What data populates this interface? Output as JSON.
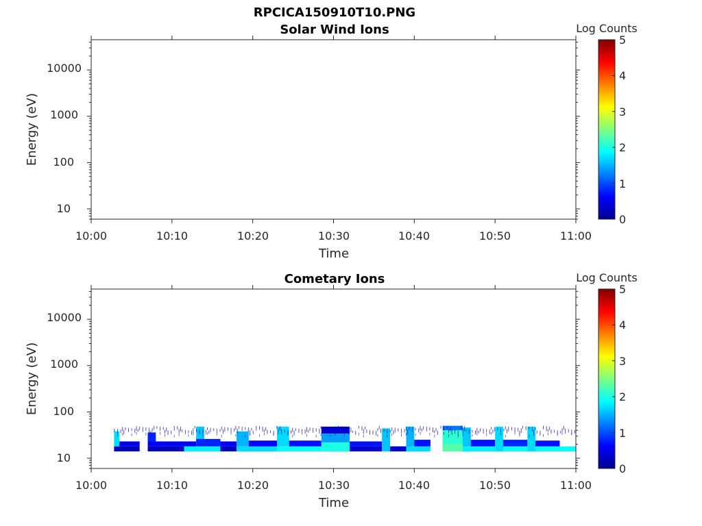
{
  "figure": {
    "title": "RPCICA150910T10.PNG"
  },
  "chart_data": [
    {
      "type": "heatmap",
      "title": "Solar Wind Ions",
      "xlabel": "Time",
      "ylabel": "Energy (eV)",
      "x_ticks": [
        "10:00",
        "10:10",
        "10:20",
        "10:30",
        "10:40",
        "10:50",
        "11:00"
      ],
      "x_range": [
        "10:00",
        "11:00"
      ],
      "y_scale": "log",
      "y_ticks": [
        "10",
        "100",
        "1000",
        "10000"
      ],
      "y_range": [
        6,
        45000
      ],
      "colorbar": {
        "label": "Log Counts",
        "ticks": [
          "0",
          "1",
          "2",
          "3",
          "4",
          "5"
        ],
        "range": [
          0,
          5
        ],
        "colormap": "jet"
      },
      "cells": []
    },
    {
      "type": "heatmap",
      "title": "Cometary Ions",
      "xlabel": "Time",
      "ylabel": "Energy (eV)",
      "x_ticks": [
        "10:00",
        "10:10",
        "10:20",
        "10:30",
        "10:40",
        "10:50",
        "11:00"
      ],
      "x_range": [
        "10:00",
        "11:00"
      ],
      "y_scale": "log",
      "y_ticks": [
        "10",
        "100",
        "1000",
        "10000"
      ],
      "y_range": [
        6,
        45000
      ],
      "colorbar": {
        "label": "Log Counts",
        "ticks": [
          "0",
          "1",
          "2",
          "3",
          "4",
          "5"
        ],
        "range": [
          0,
          5
        ],
        "colormap": "jet"
      },
      "cells": [
        {
          "t0": "10:02:50",
          "t1": "10:06:00",
          "e0": 14,
          "e1": 18,
          "v": 0.3
        },
        {
          "t0": "10:02:50",
          "t1": "10:03:30",
          "e0": 18,
          "e1": 38,
          "v": 1.7
        },
        {
          "t0": "10:03:30",
          "t1": "10:06:00",
          "e0": 18,
          "e1": 23,
          "v": 0.5
        },
        {
          "t0": "10:07:00",
          "t1": "10:13:00",
          "e0": 14,
          "e1": 18,
          "v": 0.3
        },
        {
          "t0": "10:07:00",
          "t1": "10:13:00",
          "e0": 18,
          "e1": 23,
          "v": 0.6
        },
        {
          "t0": "10:07:00",
          "t1": "10:08:00",
          "e0": 23,
          "e1": 36,
          "v": 0.8
        },
        {
          "t0": "10:11:30",
          "t1": "10:16:00",
          "e0": 14,
          "e1": 18,
          "v": 1.8
        },
        {
          "t0": "10:13:00",
          "t1": "10:14:00",
          "e0": 18,
          "e1": 48,
          "v": 1.6
        },
        {
          "t0": "10:13:00",
          "t1": "10:16:00",
          "e0": 18,
          "e1": 26,
          "v": 0.8
        },
        {
          "t0": "10:16:00",
          "t1": "10:18:00",
          "e0": 14,
          "e1": 18,
          "v": 0.3
        },
        {
          "t0": "10:16:00",
          "t1": "10:18:00",
          "e0": 18,
          "e1": 23,
          "v": 0.6
        },
        {
          "t0": "10:18:00",
          "t1": "10:23:00",
          "e0": 14,
          "e1": 18,
          "v": 1.7
        },
        {
          "t0": "10:18:00",
          "t1": "10:19:30",
          "e0": 18,
          "e1": 38,
          "v": 1.5
        },
        {
          "t0": "10:19:30",
          "t1": "10:23:00",
          "e0": 18,
          "e1": 24,
          "v": 0.6
        },
        {
          "t0": "10:23:00",
          "t1": "10:28:30",
          "e0": 14,
          "e1": 18,
          "v": 1.9
        },
        {
          "t0": "10:23:00",
          "t1": "10:24:30",
          "e0": 18,
          "e1": 48,
          "v": 1.7
        },
        {
          "t0": "10:24:30",
          "t1": "10:28:30",
          "e0": 18,
          "e1": 24,
          "v": 0.7
        },
        {
          "t0": "10:28:30",
          "t1": "10:32:00",
          "e0": 14,
          "e1": 22,
          "v": 2.0
        },
        {
          "t0": "10:28:30",
          "t1": "10:32:00",
          "e0": 22,
          "e1": 34,
          "v": 1.4
        },
        {
          "t0": "10:28:30",
          "t1": "10:32:00",
          "e0": 34,
          "e1": 48,
          "v": 0.4
        },
        {
          "t0": "10:32:00",
          "t1": "10:36:00",
          "e0": 14,
          "e1": 18,
          "v": 0.4
        },
        {
          "t0": "10:32:00",
          "t1": "10:36:00",
          "e0": 18,
          "e1": 23,
          "v": 0.7
        },
        {
          "t0": "10:36:00",
          "t1": "10:37:00",
          "e0": 14,
          "e1": 44,
          "v": 1.6
        },
        {
          "t0": "10:37:00",
          "t1": "10:39:30",
          "e0": 14,
          "e1": 18,
          "v": 0.4
        },
        {
          "t0": "10:39:00",
          "t1": "10:42:00",
          "e0": 14,
          "e1": 18,
          "v": 1.7
        },
        {
          "t0": "10:39:00",
          "t1": "10:40:00",
          "e0": 18,
          "e1": 48,
          "v": 1.5
        },
        {
          "t0": "10:40:00",
          "t1": "10:42:00",
          "e0": 18,
          "e1": 25,
          "v": 0.7
        },
        {
          "t0": "10:43:30",
          "t1": "10:46:00",
          "e0": 14,
          "e1": 20,
          "v": 2.3
        },
        {
          "t0": "10:43:30",
          "t1": "10:46:00",
          "e0": 20,
          "e1": 40,
          "v": 2.1
        },
        {
          "t0": "10:43:30",
          "t1": "10:46:00",
          "e0": 40,
          "e1": 50,
          "v": 1.2
        },
        {
          "t0": "10:46:00",
          "t1": "10:50:00",
          "e0": 14,
          "e1": 18,
          "v": 1.8
        },
        {
          "t0": "10:46:00",
          "t1": "10:47:00",
          "e0": 18,
          "e1": 46,
          "v": 1.6
        },
        {
          "t0": "10:47:00",
          "t1": "10:50:00",
          "e0": 18,
          "e1": 25,
          "v": 0.7
        },
        {
          "t0": "10:50:00",
          "t1": "10:51:00",
          "e0": 14,
          "e1": 48,
          "v": 1.7
        },
        {
          "t0": "10:51:00",
          "t1": "10:54:00",
          "e0": 14,
          "e1": 18,
          "v": 1.9
        },
        {
          "t0": "10:51:00",
          "t1": "10:54:00",
          "e0": 18,
          "e1": 25,
          "v": 0.8
        },
        {
          "t0": "10:54:00",
          "t1": "10:55:00",
          "e0": 14,
          "e1": 48,
          "v": 1.7
        },
        {
          "t0": "10:55:00",
          "t1": "11:00:00",
          "e0": 14,
          "e1": 18,
          "v": 1.9
        },
        {
          "t0": "10:55:00",
          "t1": "10:58:00",
          "e0": 18,
          "e1": 24,
          "v": 0.7
        }
      ],
      "sparse_band": {
        "t0": "10:02:50",
        "t1": "11:00:00",
        "e0": 36,
        "e1": 50,
        "v": 0.2
      }
    }
  ]
}
